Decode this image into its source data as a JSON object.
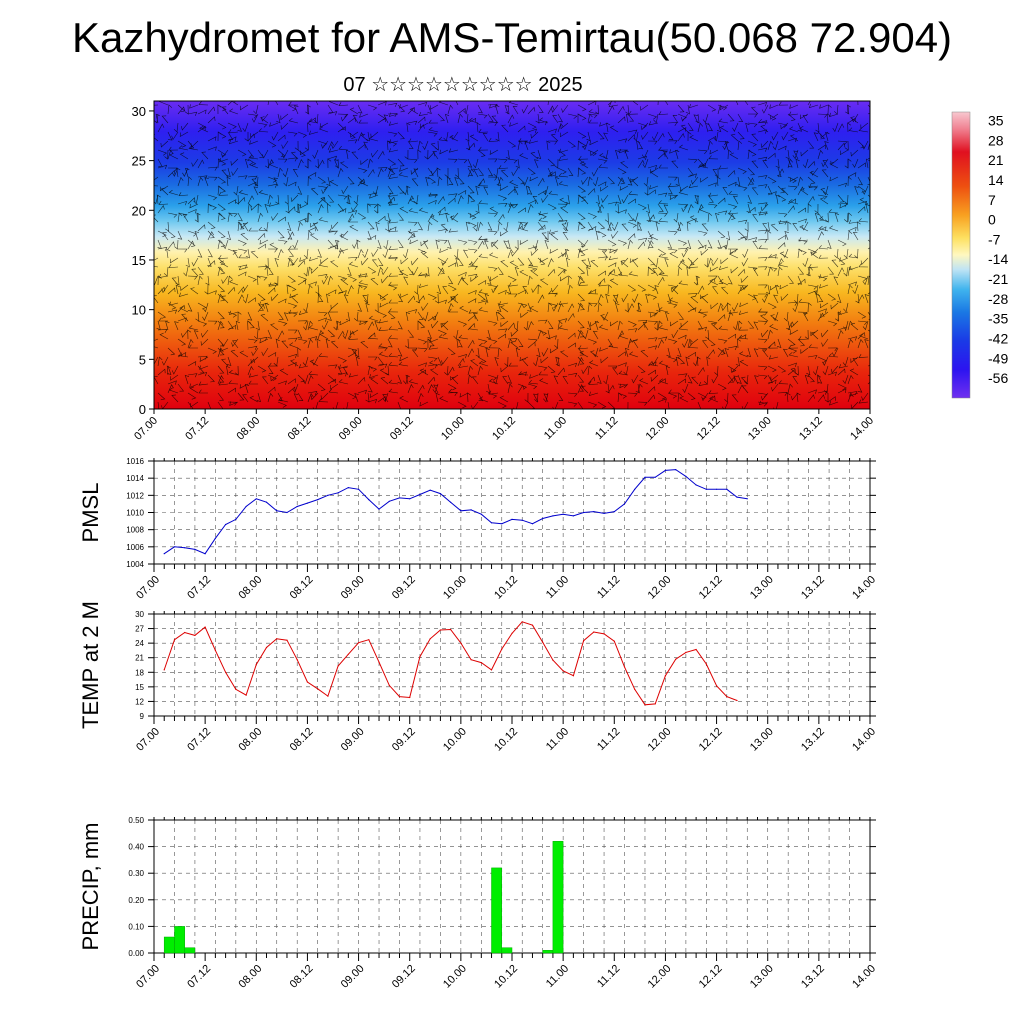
{
  "title": "Kazhydromet for AMS-Temirtau(50.068 72.904)",
  "subtitle": "07 ☆☆☆☆☆☆☆☆☆ 2025",
  "colors": {
    "pmsl_line": "#0000cc",
    "temp_line": "#dd0000",
    "precip_bar": "#00ee00"
  },
  "chart_data": [
    {
      "id": "cross_section",
      "type": "heatmap",
      "description_units": "temperature color field with wind barbs",
      "x_tick_labels": [
        "07.00",
        "07.12",
        "08.00",
        "08.12",
        "09.00",
        "09.12",
        "10.00",
        "10.12",
        "11.00",
        "11.12",
        "12.00",
        "12.12",
        "13.00",
        "13.12",
        "14.00"
      ],
      "y_ticks": [
        0,
        5,
        10,
        15,
        20,
        25,
        30
      ],
      "ylim": [
        0,
        31
      ],
      "colorbar_labels": [
        "35",
        "28",
        "21",
        "14",
        "7",
        "0",
        "-7",
        "-14",
        "-21",
        "-28",
        "-35",
        "-42",
        "-49",
        "-56"
      ],
      "colorbar_range": [
        -63,
        38
      ]
    },
    {
      "id": "pmsl",
      "type": "line",
      "ylabel": "PMSL",
      "ylim": [
        1004,
        1016
      ],
      "y_ticks": [
        1004,
        1006,
        1008,
        1010,
        1012,
        1014,
        1016
      ],
      "x_tick_labels": [
        "07.00",
        "07.12",
        "08.00",
        "08.12",
        "09.00",
        "09.12",
        "10.00",
        "10.12",
        "11.00",
        "11.12",
        "12.00",
        "12.12",
        "13.00",
        "13.12",
        "14.00"
      ],
      "values": [
        1005.2,
        1006.0,
        1005.9,
        1005.7,
        1005.2,
        1007.0,
        1008.6,
        1009.2,
        1010.7,
        1011.6,
        1011.2,
        1010.2,
        1010.0,
        1010.7,
        1011.1,
        1011.5,
        1012.0,
        1012.3,
        1012.9,
        1012.7,
        1011.5,
        1010.4,
        1011.3,
        1011.7,
        1011.6,
        1012.1,
        1012.6,
        1012.2,
        1011.2,
        1010.2,
        1010.3,
        1009.8,
        1008.8,
        1008.7,
        1009.2,
        1009.1,
        1008.7,
        1009.3,
        1009.6,
        1009.8,
        1009.6,
        1010.0,
        1010.1,
        1009.9,
        1010.1,
        1011.0,
        1012.7,
        1014.1,
        1014.1,
        1014.9,
        1015.0,
        1014.2,
        1013.2,
        1012.7,
        1012.7,
        1012.7,
        1011.8,
        1011.6
      ]
    },
    {
      "id": "temp",
      "type": "line",
      "ylabel": "TEMP at 2 M",
      "ylim": [
        9,
        30
      ],
      "y_ticks": [
        9,
        12,
        15,
        18,
        21,
        24,
        27,
        30
      ],
      "x_tick_labels": [
        "07.00",
        "07.12",
        "08.00",
        "08.12",
        "09.00",
        "09.12",
        "10.00",
        "10.12",
        "11.00",
        "11.12",
        "12.00",
        "12.12",
        "13.00",
        "13.12",
        "14.00"
      ],
      "values": [
        18.5,
        24.7,
        26.2,
        25.6,
        27.3,
        22.5,
        18.0,
        14.5,
        13.3,
        19.6,
        23.1,
        24.9,
        24.6,
        20.6,
        16.0,
        14.6,
        13.1,
        19.3,
        21.7,
        24.1,
        24.7,
        20.1,
        15.3,
        13.0,
        12.8,
        21.2,
        24.9,
        26.7,
        26.8,
        24.0,
        20.6,
        20.0,
        18.5,
        22.8,
        26.0,
        28.4,
        27.7,
        24.2,
        20.5,
        18.3,
        17.3,
        24.5,
        26.3,
        25.9,
        24.4,
        19.1,
        14.5,
        11.3,
        11.5,
        17.3,
        20.7,
        22.1,
        22.7,
        19.7,
        15.2,
        13.0,
        12.2
      ]
    },
    {
      "id": "precip",
      "type": "bar",
      "ylabel": "PRECIP, mm",
      "ylim": [
        0,
        0.5
      ],
      "y_tick_labels": [
        "0.00",
        "0.10",
        "0.20",
        "0.30",
        "0.40",
        "0.50"
      ],
      "x_tick_labels": [
        "07.00",
        "07.12",
        "08.00",
        "08.12",
        "09.00",
        "09.12",
        "10.00",
        "10.12",
        "11.00",
        "11.12",
        "12.00",
        "12.12",
        "13.00",
        "13.12",
        "14.00"
      ],
      "bars": [
        {
          "step": 2,
          "value": 0.06
        },
        {
          "step": 3,
          "value": 0.1
        },
        {
          "step": 4,
          "value": 0.02
        },
        {
          "step": 34,
          "value": 0.32
        },
        {
          "step": 35,
          "value": 0.02
        },
        {
          "step": 39,
          "value": 0.01
        },
        {
          "step": 40,
          "value": 0.42
        }
      ]
    }
  ]
}
